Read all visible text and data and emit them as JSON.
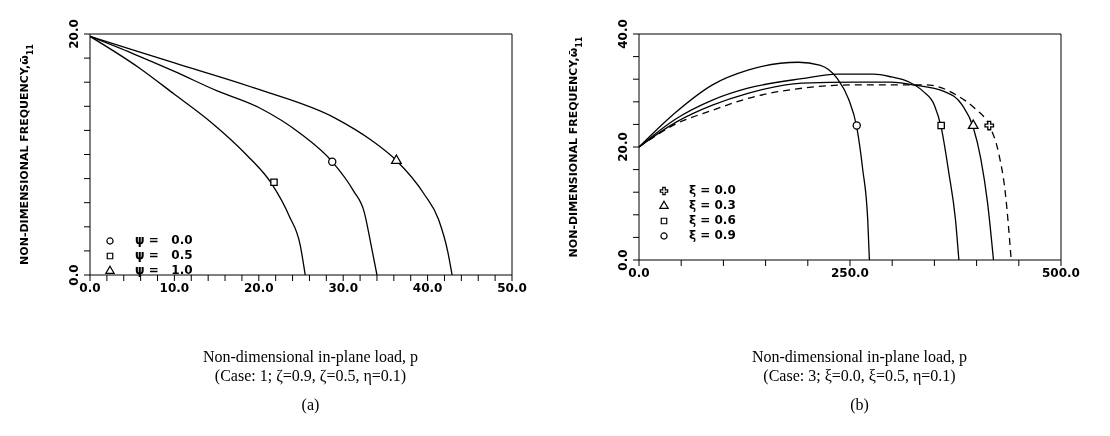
{
  "chart_data": [
    {
      "type": "line",
      "ylabel": "NON-DIMENSIONAL FREQUENCY,ω̄$_{11}$",
      "xlabel": "Non-dimensional in-plane load, p",
      "annotations": [
        "(Case: 1; ζ=0.9, ζ=0.5, η=0.1)",
        "(a)"
      ],
      "xlim": [
        0,
        50
      ],
      "ylim": [
        0,
        20
      ],
      "xticks": [
        {
          "value": 0,
          "label": "0.0"
        },
        {
          "value": 2,
          "label": null
        },
        {
          "value": 4,
          "label": null
        },
        {
          "value": 6,
          "label": null
        },
        {
          "value": 8,
          "label": null
        },
        {
          "value": 10,
          "label": "10.0"
        },
        {
          "value": 12,
          "label": null
        },
        {
          "value": 14,
          "label": null
        },
        {
          "value": 16,
          "label": null
        },
        {
          "value": 18,
          "label": null
        },
        {
          "value": 20,
          "label": "20.0"
        },
        {
          "value": 22,
          "label": null
        },
        {
          "value": 24,
          "label": null
        },
        {
          "value": 26,
          "label": null
        },
        {
          "value": 28,
          "label": null
        },
        {
          "value": 30,
          "label": "30.0"
        },
        {
          "value": 32,
          "label": null
        },
        {
          "value": 34,
          "label": null
        },
        {
          "value": 36,
          "label": null
        },
        {
          "value": 38,
          "label": null
        },
        {
          "value": 40,
          "label": "40.0"
        },
        {
          "value": 42,
          "label": null
        },
        {
          "value": 44,
          "label": null
        },
        {
          "value": 46,
          "label": null
        },
        {
          "value": 48,
          "label": null
        },
        {
          "value": 50,
          "label": "50.0"
        }
      ],
      "yticks": [
        {
          "value": 0,
          "label": "0.0"
        },
        {
          "value": 2,
          "label": null
        },
        {
          "value": 4,
          "label": null
        },
        {
          "value": 6,
          "label": null
        },
        {
          "value": 8,
          "label": null
        },
        {
          "value": 10,
          "label": null
        },
        {
          "value": 12,
          "label": null
        },
        {
          "value": 14,
          "label": null
        },
        {
          "value": 16,
          "label": null
        },
        {
          "value": 18,
          "label": null
        },
        {
          "value": 20,
          "label": "20.0"
        }
      ],
      "legend": "bottom left",
      "series": [
        {
          "type": "line",
          "color": "#000000",
          "line_style": "solid",
          "x": [
            0,
            5.8,
            10,
            14.3,
            18.5,
            21.5,
            23.6,
            24.9,
            25.5
          ],
          "values": [
            19.8,
            17.2,
            15.0,
            12.7,
            10.0,
            7.6,
            4.9,
            2.5,
            0
          ]
        },
        {
          "type": "line",
          "color": "#000000",
          "line_style": "solid",
          "x": [
            0,
            5,
            10,
            15,
            20,
            25,
            28.7,
            31.2,
            32.5,
            33.3,
            34.0
          ],
          "values": [
            19.8,
            18.4,
            16.9,
            15.3,
            13.9,
            11.7,
            9.4,
            7.0,
            5.2,
            2.5,
            0
          ]
        },
        {
          "type": "line",
          "color": "#000000",
          "line_style": "solid",
          "x": [
            0,
            10,
            20,
            29.1,
            33.3,
            36.3,
            39.6,
            41.3,
            42.4,
            42.9
          ],
          "values": [
            19.8,
            17.6,
            15.4,
            13.0,
            11.2,
            9.5,
            6.7,
            4.6,
            1.9,
            0
          ]
        },
        {
          "type": "scatter",
          "name": "ψ =   0.0",
          "color": "#000000",
          "marker": "circle",
          "x": [
            28.7
          ],
          "values": [
            9.4
          ]
        },
        {
          "type": "scatter",
          "name": "ψ =   0.5",
          "color": "#000000",
          "marker": "square",
          "x": [
            21.8
          ],
          "values": [
            7.7
          ]
        },
        {
          "type": "scatter",
          "name": "ψ =   1.0",
          "color": "#000000",
          "marker": "triangle",
          "x": [
            36.3
          ],
          "values": [
            9.5
          ]
        }
      ]
    },
    {
      "type": "line",
      "ylabel": "NON-DIMENSIONAL FREQUENCY,ω̄$_{11}$",
      "xlabel": "Non-dimensional in-plane load, p",
      "annotations": [
        "(Case: 3; ξ=0.0, ξ=0.5, η=0.1)",
        "(b)"
      ],
      "xlim": [
        0,
        500
      ],
      "ylim": [
        0,
        40
      ],
      "xticks": [
        {
          "value": 0,
          "label": "0.0"
        },
        {
          "value": 50,
          "label": null
        },
        {
          "value": 100,
          "label": null
        },
        {
          "value": 150,
          "label": null
        },
        {
          "value": 200,
          "label": null
        },
        {
          "value": 250,
          "label": "250.0"
        },
        {
          "value": 300,
          "label": null
        },
        {
          "value": 350,
          "label": null
        },
        {
          "value": 400,
          "label": null
        },
        {
          "value": 450,
          "label": null
        },
        {
          "value": 500,
          "label": "500.0"
        }
      ],
      "yticks": [
        {
          "value": 0,
          "label": "0.0"
        },
        {
          "value": 4,
          "label": null
        },
        {
          "value": 8,
          "label": null
        },
        {
          "value": 12,
          "label": null
        },
        {
          "value": 16,
          "label": null
        },
        {
          "value": 20,
          "label": "20.0"
        },
        {
          "value": 24,
          "label": null
        },
        {
          "value": 28,
          "label": null
        },
        {
          "value": 32,
          "label": null
        },
        {
          "value": 36,
          "label": null
        },
        {
          "value": 40,
          "label": "40.0"
        }
      ],
      "legend": "left",
      "series": [
        {
          "type": "line",
          "color": "#000000",
          "line_style": "solid",
          "x": [
            0,
            44,
            87,
            129,
            189,
            214,
            235,
            248,
            258,
            265,
            271,
            273
          ],
          "values": [
            20,
            26.2,
            31.0,
            33.6,
            35.0,
            34.5,
            32.1,
            28.6,
            23.5,
            16.1,
            7.1,
            0
          ]
        },
        {
          "type": "line",
          "color": "#000000",
          "line_style": "solid",
          "x": [
            0,
            44,
            87,
            129,
            193,
            235,
            278,
            299,
            320,
            337,
            350,
            358,
            367,
            375,
            379
          ],
          "values": [
            20,
            25.0,
            28.3,
            30.4,
            32.1,
            32.9,
            32.9,
            32.4,
            31.5,
            29.8,
            27.4,
            23.5,
            15.5,
            7.1,
            0
          ]
        },
        {
          "type": "line",
          "color": "#000000",
          "line_style": "solid",
          "x": [
            0,
            44,
            87,
            129,
            193,
            256,
            299,
            324,
            362,
            383,
            396,
            405,
            413,
            420
          ],
          "values": [
            20,
            24.4,
            27.4,
            29.5,
            31.3,
            31.5,
            31.5,
            31.0,
            29.8,
            27.4,
            23.5,
            17.9,
            10.1,
            0
          ]
        },
        {
          "type": "line",
          "color": "#000000",
          "line_style": "dashed",
          "x": [
            0,
            44,
            87,
            129,
            193,
            256,
            341,
            376,
            398,
            415,
            426,
            434,
            441
          ],
          "values": [
            20,
            24.1,
            26.5,
            28.6,
            30.4,
            31.0,
            31.0,
            29.2,
            26.8,
            23.8,
            19.0,
            11.9,
            0
          ]
        },
        {
          "type": "scatter",
          "name": "ξ = 0.0",
          "color": "#000000",
          "marker": "cross",
          "x": [
            415
          ],
          "values": [
            23.8
          ]
        },
        {
          "type": "scatter",
          "name": "ξ = 0.3",
          "color": "#000000",
          "marker": "triangle",
          "x": [
            396
          ],
          "values": [
            23.8
          ]
        },
        {
          "type": "scatter",
          "name": "ξ = 0.6",
          "color": "#000000",
          "marker": "square",
          "x": [
            358
          ],
          "values": [
            23.8
          ]
        },
        {
          "type": "scatter",
          "name": "ξ = 0.9",
          "color": "#000000",
          "marker": "circle",
          "x": [
            258
          ],
          "values": [
            23.8
          ]
        }
      ]
    }
  ]
}
